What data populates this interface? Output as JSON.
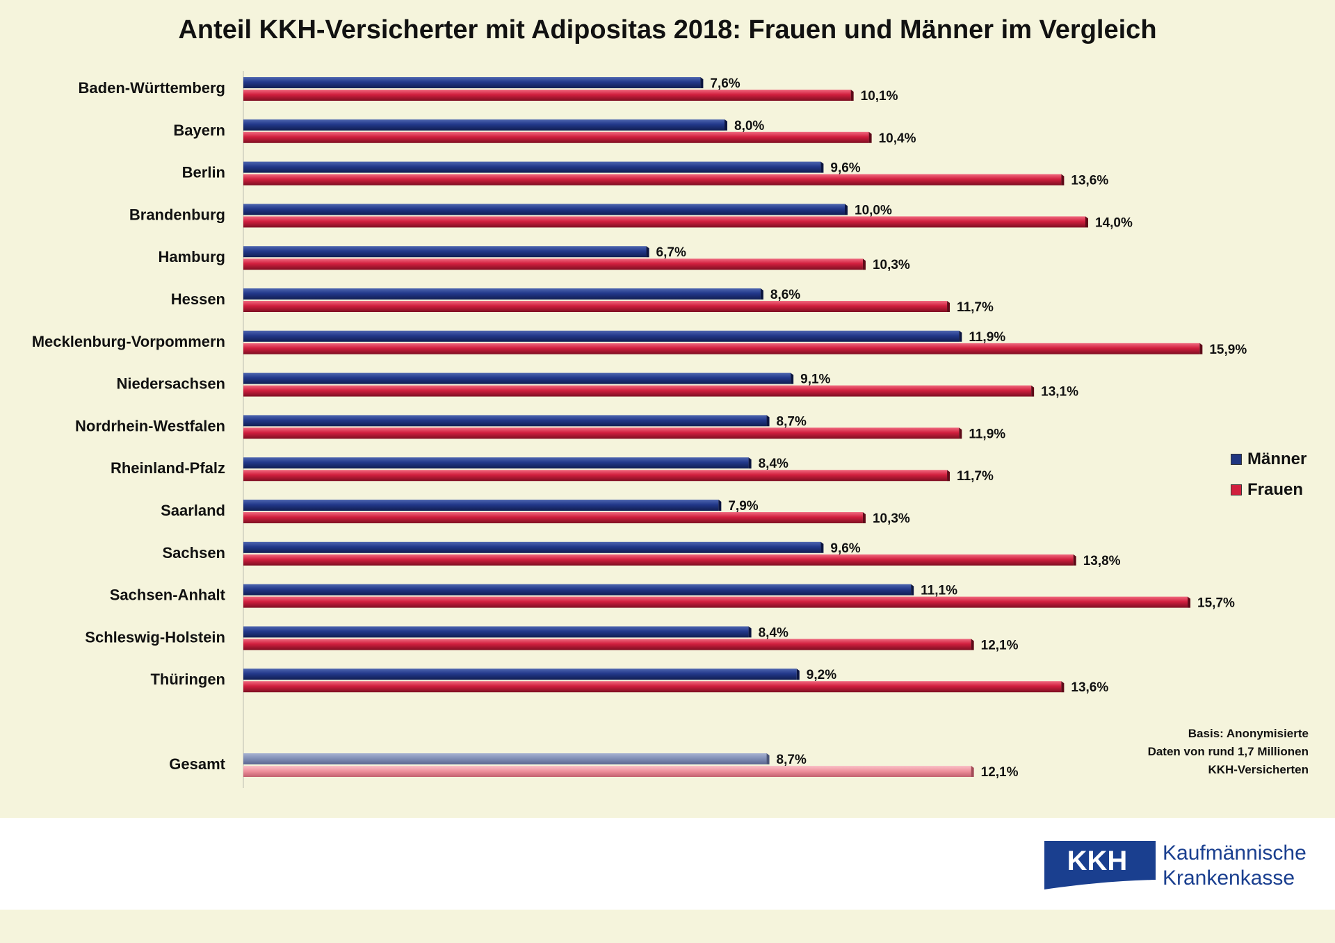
{
  "chart_data": {
    "type": "bar",
    "orientation": "horizontal",
    "title": "Anteil KKH-Versicherter mit Adipositas 2018: Frauen und Männer im Vergleich",
    "categories": [
      "Baden-Württemberg",
      "Bayern",
      "Berlin",
      "Brandenburg",
      "Hamburg",
      "Hessen",
      "Mecklenburg-Vorpommern",
      "Niedersachsen",
      "Nordrhein-Westfalen",
      "Rheinland-Pfalz",
      "Saarland",
      "Sachsen",
      "Sachsen-Anhalt",
      "Schleswig-Holstein",
      "Thüringen",
      "Gesamt"
    ],
    "series": [
      {
        "name": "Männer",
        "color": "#1f3580",
        "values": [
          7.6,
          8.0,
          9.6,
          10.0,
          6.7,
          8.6,
          11.9,
          9.1,
          8.7,
          8.4,
          7.9,
          9.6,
          11.1,
          8.4,
          9.2,
          8.7
        ],
        "labels": [
          "7,6%",
          "8,0%",
          "9,6%",
          "10,0%",
          "6,7%",
          "8,6%",
          "11,9%",
          "9,1%",
          "8,7%",
          "8,4%",
          "7,9%",
          "9,6%",
          "11,1%",
          "8,4%",
          "9,2%",
          "8,7%"
        ]
      },
      {
        "name": "Frauen",
        "color": "#d11f3e",
        "values": [
          10.1,
          10.4,
          13.6,
          14.0,
          10.3,
          11.7,
          15.9,
          13.1,
          11.9,
          11.7,
          10.3,
          13.8,
          15.7,
          12.1,
          13.6,
          12.1
        ],
        "labels": [
          "10,1%",
          "10,4%",
          "13,6%",
          "14,0%",
          "10,3%",
          "11,7%",
          "15,9%",
          "13,1%",
          "11,9%",
          "11,7%",
          "10,3%",
          "13,8%",
          "15,7%",
          "12,1%",
          "13,6%",
          "12,1%"
        ]
      }
    ],
    "highlight_category": "Gesamt",
    "highlight_colors": {
      "Männer": "#7f8db4",
      "Frauen": "#ee8f9b"
    },
    "xlim": [
      0,
      16
    ],
    "grid": false,
    "legend_position": "right"
  },
  "footnote": {
    "lines": [
      "Basis: Anonymisierte",
      "Daten von rund 1,7 Millionen",
      "KKH-Versicherten"
    ]
  },
  "logo": {
    "mark_text": "KKH",
    "line1": "Kaufmännische",
    "line2": "Krankenkasse",
    "color": "#1a3f8f"
  }
}
